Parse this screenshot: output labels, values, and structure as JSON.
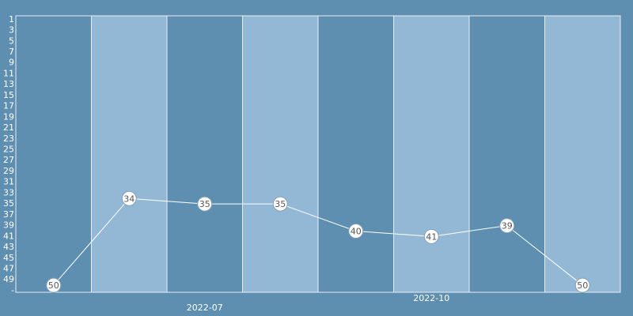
{
  "chart_data": {
    "type": "line",
    "categories": [
      null,
      null,
      "2022-07",
      null,
      null,
      "2022-10",
      null,
      null
    ],
    "series": [
      {
        "name": null,
        "color": "#ffffff",
        "values": [
          50,
          34,
          35,
          35,
          40,
          41,
          39,
          50
        ]
      }
    ],
    "ylim": [
      51.3,
      0.3
    ],
    "yticks": [
      1,
      3,
      5,
      7,
      9,
      11,
      13,
      15,
      17,
      19,
      21,
      23,
      25,
      27,
      29,
      31,
      33,
      35,
      37,
      39,
      41,
      43,
      45,
      47,
      49,
      {
        "value": 51,
        "label": "-"
      }
    ],
    "band_colors": [
      "#5e8fb1",
      "#93b8d6"
    ],
    "background": "#5e8eb0"
  }
}
